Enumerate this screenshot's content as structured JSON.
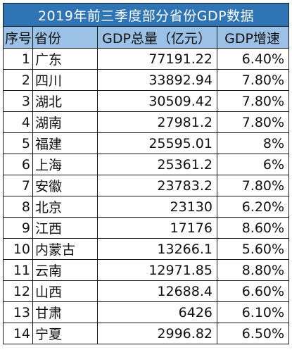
{
  "title": "2019年前三季度部分省份GDP数据",
  "headers": {
    "index": "序号",
    "province": "省份",
    "gdp": "GDP总量（亿元）",
    "growth": "GDP增速"
  },
  "rows": [
    {
      "index": "1",
      "province": "广东",
      "gdp": "77191.22",
      "growth": "6.40%"
    },
    {
      "index": "2",
      "province": "四川",
      "gdp": "33892.94",
      "growth": "7.80%"
    },
    {
      "index": "3",
      "province": "湖北",
      "gdp": "30509.42",
      "growth": "7.80%"
    },
    {
      "index": "4",
      "province": "湖南",
      "gdp": "27981.2",
      "growth": "7.80%"
    },
    {
      "index": "5",
      "province": "福建",
      "gdp": "25595.01",
      "growth": "8%"
    },
    {
      "index": "6",
      "province": "上海",
      "gdp": "25361.2",
      "growth": "6%"
    },
    {
      "index": "7",
      "province": "安徽",
      "gdp": "23783.2",
      "growth": "7.80%"
    },
    {
      "index": "8",
      "province": "北京",
      "gdp": "23130",
      "growth": "6.20%"
    },
    {
      "index": "9",
      "province": "江西",
      "gdp": "17176",
      "growth": "8.60%"
    },
    {
      "index": "10",
      "province": "内蒙古",
      "gdp": "13266.1",
      "growth": "5.60%"
    },
    {
      "index": "11",
      "province": "云南",
      "gdp": "12971.85",
      "growth": "8.80%"
    },
    {
      "index": "12",
      "province": "山西",
      "gdp": "12688.4",
      "growth": "6.60%"
    },
    {
      "index": "13",
      "province": "甘肃",
      "gdp": "6426",
      "growth": "6.10%"
    },
    {
      "index": "14",
      "province": "宁夏",
      "gdp": "2996.82",
      "growth": "6.50%"
    }
  ],
  "colors": {
    "title_bg": "#2f75b5",
    "header_bg": "#9bc2e6",
    "border": "#1a1a1a"
  }
}
